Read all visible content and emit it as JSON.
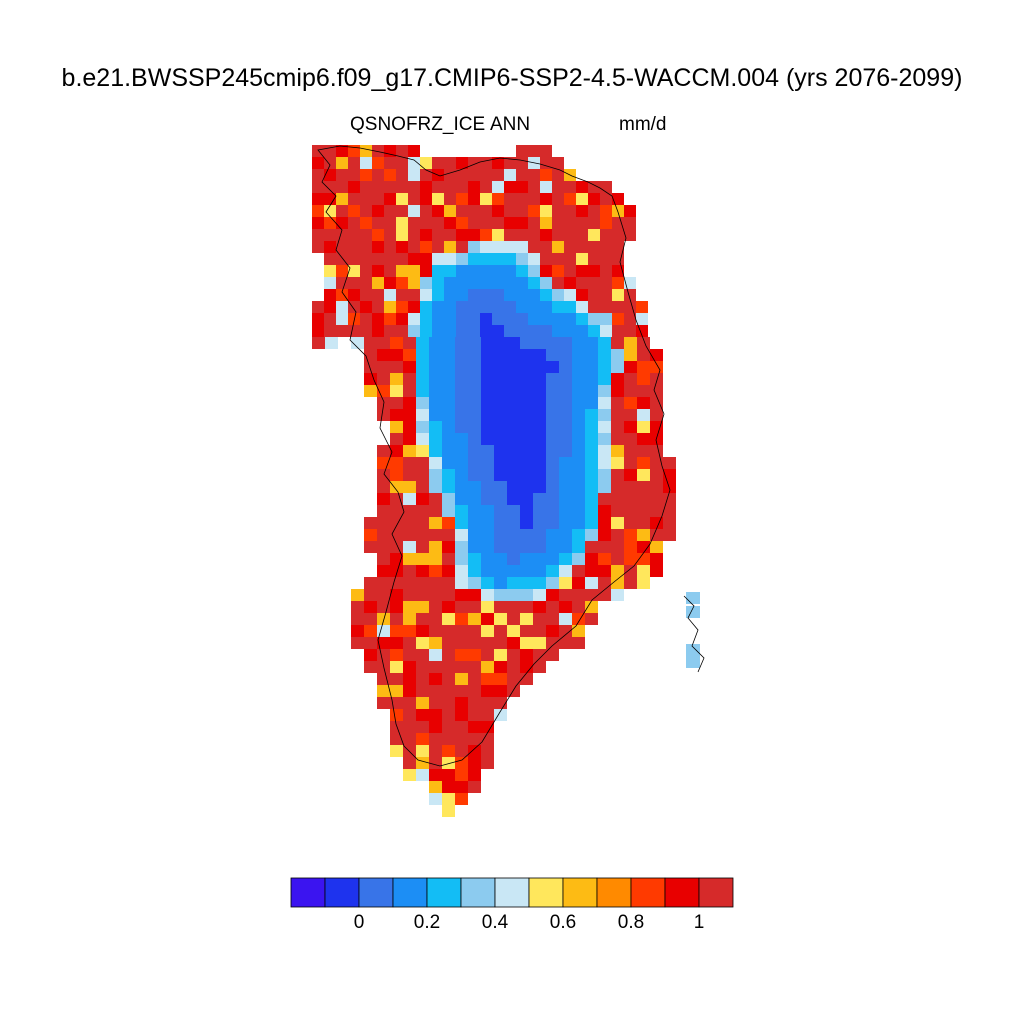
{
  "title": "b.e21.BWSSP245cmip6.f09_g17.CMIP6-SSP2-4.5-WACCM.004 (yrs 2076-2099)",
  "variable": "QSNOFRZ_ICE",
  "season": "ANN",
  "units": "mm/d",
  "colorbar": {
    "colors": [
      "#3b14f0",
      "#1e33ee",
      "#3874e8",
      "#1c8ef5",
      "#13bdf5",
      "#8ccbef",
      "#c9e7f5",
      "#ffe75c",
      "#fdbb14",
      "#ff8a00",
      "#ff3a00",
      "#e80000",
      "#d62a2a"
    ],
    "labels": [
      "0",
      "0.2",
      "0.4",
      "0.6",
      "0.8",
      "1"
    ]
  }
}
